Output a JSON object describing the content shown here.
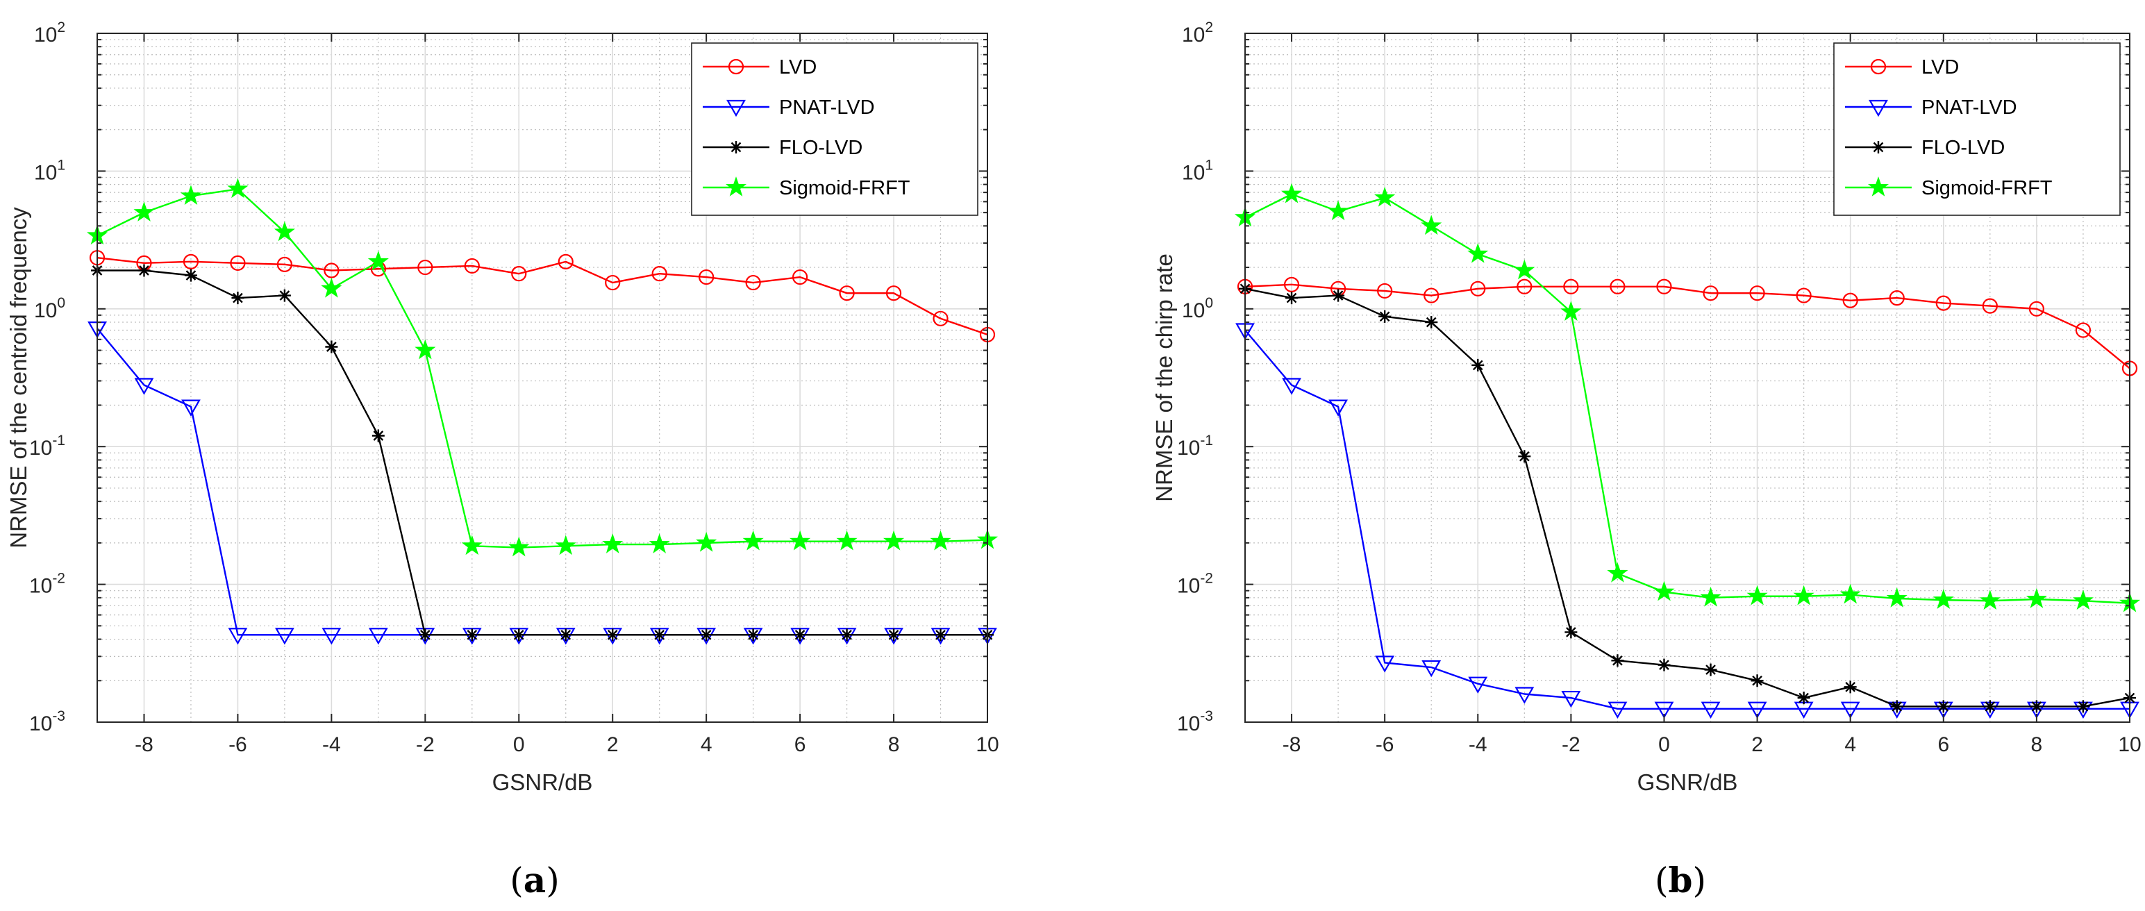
{
  "styles": {
    "LVD": {
      "color": "#ff0000",
      "marker": "circle"
    },
    "PNAT-LVD": {
      "color": "#0000ff",
      "marker": "triangle-down"
    },
    "FLO-LVD": {
      "color": "#000000",
      "marker": "asterisk"
    },
    "Sigmoid-FRFT": {
      "color": "#00ff00",
      "marker": "pentagram"
    }
  },
  "chart_data": [
    {
      "type": "line",
      "caption_open": "(",
      "caption_letter": "a",
      "caption_close": ")",
      "title": "",
      "xlabel": "GSNR/dB",
      "ylabel": "NRMSE of the centroid frequency",
      "yscale": "log",
      "xlim": [
        -9,
        10
      ],
      "ylim": [
        0.001,
        100
      ],
      "x_ticks": [
        -8,
        -6,
        -4,
        -2,
        0,
        2,
        4,
        6,
        8,
        10
      ],
      "x_tick_labels": [
        "-8",
        "-6",
        "-4",
        "-2",
        "0",
        "2",
        "4",
        "6",
        "8",
        "10"
      ],
      "y_tick_labels": [
        {
          "base": "10",
          "exp": "-3"
        },
        {
          "base": "10",
          "exp": "-2"
        },
        {
          "base": "10",
          "exp": "-1"
        },
        {
          "base": "10",
          "exp": "0"
        },
        {
          "base": "10",
          "exp": "1"
        },
        {
          "base": "10",
          "exp": "2"
        }
      ],
      "grid": true,
      "legend_position": "top-right",
      "x": [
        -9,
        -8,
        -7,
        -6,
        -5,
        -4,
        -3,
        -2,
        -1,
        0,
        1,
        2,
        3,
        4,
        5,
        6,
        7,
        8,
        9,
        10
      ],
      "series": [
        {
          "name": "LVD",
          "values": [
            2.35,
            2.15,
            2.2,
            2.15,
            2.1,
            1.9,
            1.95,
            2.0,
            2.05,
            1.8,
            2.2,
            1.55,
            1.8,
            1.7,
            1.55,
            1.7,
            1.3,
            1.3,
            0.85,
            0.65
          ]
        },
        {
          "name": "PNAT-LVD",
          "values": [
            0.72,
            0.28,
            0.195,
            0.0043,
            0.0043,
            0.0043,
            0.0043,
            0.0043,
            0.0043,
            0.0043,
            0.0043,
            0.0043,
            0.0043,
            0.0043,
            0.0043,
            0.0043,
            0.0043,
            0.0043,
            0.0043,
            0.0043
          ]
        },
        {
          "name": "FLO-LVD",
          "values": [
            1.9,
            1.9,
            1.75,
            1.2,
            1.25,
            0.53,
            0.12,
            0.0043,
            0.0043,
            0.0043,
            0.0043,
            0.0043,
            0.0043,
            0.0043,
            0.0043,
            0.0043,
            0.0043,
            0.0043,
            0.0043,
            0.0043
          ]
        },
        {
          "name": "Sigmoid-FRFT",
          "values": [
            3.4,
            5.0,
            6.6,
            7.4,
            3.6,
            1.4,
            2.2,
            0.5,
            0.019,
            0.0185,
            0.019,
            0.0195,
            0.0195,
            0.02,
            0.0205,
            0.0205,
            0.0205,
            0.0205,
            0.0205,
            0.021
          ]
        }
      ]
    },
    {
      "type": "line",
      "caption_open": "(",
      "caption_letter": "b",
      "caption_close": ")",
      "title": "",
      "xlabel": "GSNR/dB",
      "ylabel": "NRMSE of the chirp rate",
      "yscale": "log",
      "xlim": [
        -9,
        10
      ],
      "ylim": [
        0.001,
        100
      ],
      "x_ticks": [
        -8,
        -6,
        -4,
        -2,
        0,
        2,
        4,
        6,
        8,
        10
      ],
      "x_tick_labels": [
        "-8",
        "-6",
        "-4",
        "-2",
        "0",
        "2",
        "4",
        "6",
        "8",
        "10"
      ],
      "y_tick_labels": [
        {
          "base": "10",
          "exp": "-3"
        },
        {
          "base": "10",
          "exp": "-2"
        },
        {
          "base": "10",
          "exp": "-1"
        },
        {
          "base": "10",
          "exp": "0"
        },
        {
          "base": "10",
          "exp": "1"
        },
        {
          "base": "10",
          "exp": "2"
        }
      ],
      "grid": true,
      "legend_position": "top-right",
      "x": [
        -9,
        -8,
        -7,
        -6,
        -5,
        -4,
        -3,
        -2,
        -1,
        0,
        1,
        2,
        3,
        4,
        5,
        6,
        7,
        8,
        9,
        10
      ],
      "series": [
        {
          "name": "LVD",
          "values": [
            1.45,
            1.5,
            1.4,
            1.35,
            1.25,
            1.4,
            1.45,
            1.45,
            1.45,
            1.45,
            1.3,
            1.3,
            1.25,
            1.15,
            1.2,
            1.1,
            1.05,
            1.0,
            0.7,
            0.37
          ]
        },
        {
          "name": "PNAT-LVD",
          "values": [
            0.7,
            0.28,
            0.195,
            0.0027,
            0.0025,
            0.0019,
            0.0016,
            0.0015,
            0.00125,
            0.00125,
            0.00125,
            0.00125,
            0.00125,
            0.00125,
            0.00125,
            0.00125,
            0.00125,
            0.00125,
            0.00125,
            0.00125
          ]
        },
        {
          "name": "FLO-LVD",
          "values": [
            1.4,
            1.2,
            1.25,
            0.88,
            0.8,
            0.39,
            0.085,
            0.0045,
            0.0028,
            0.0026,
            0.0024,
            0.002,
            0.0015,
            0.0018,
            0.0013,
            0.0013,
            0.0013,
            0.0013,
            0.0013,
            0.0015
          ]
        },
        {
          "name": "Sigmoid-FRFT",
          "values": [
            4.6,
            6.8,
            5.1,
            6.4,
            4.0,
            2.5,
            1.9,
            0.95,
            0.012,
            0.0088,
            0.008,
            0.0082,
            0.0082,
            0.0084,
            0.0079,
            0.0077,
            0.0076,
            0.0078,
            0.0076,
            0.0073
          ]
        }
      ]
    }
  ]
}
